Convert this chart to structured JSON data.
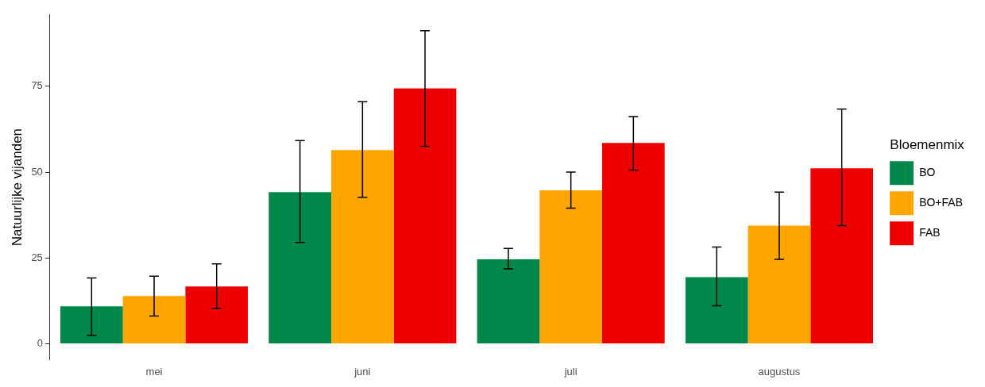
{
  "chart_data": {
    "type": "bar",
    "ylabel": "Natuurlijke vijanden",
    "legend_title": "Bloemenmix",
    "legend": "right",
    "grid": false,
    "categories": [
      "mei",
      "juni",
      "juli",
      "augustus"
    ],
    "series": [
      {
        "name": "BO",
        "color": "#00884a",
        "values": [
          10.9,
          44.2,
          24.6,
          19.4
        ],
        "errors": [
          [
            2.4,
            19.2
          ],
          [
            29.5,
            59.2
          ],
          [
            21.8,
            27.8
          ],
          [
            11.1,
            28.2
          ]
        ]
      },
      {
        "name": "BO+FAB",
        "color": "#ffa500",
        "values": [
          13.9,
          56.4,
          44.7,
          34.4
        ],
        "errors": [
          [
            8.1,
            19.7
          ],
          [
            42.7,
            70.5
          ],
          [
            39.5,
            50
          ],
          [
            24.6,
            44.2
          ]
        ]
      },
      {
        "name": "FAB",
        "color": "#ee0000",
        "values": [
          16.7,
          74.4,
          58.5,
          51.1
        ],
        "errors": [
          [
            10.3,
            23.3
          ],
          [
            57.5,
            91.2
          ],
          [
            50.6,
            66.2
          ],
          [
            34.4,
            68.4
          ]
        ]
      }
    ],
    "ylim": [
      -4.6,
      95.8
    ],
    "yticks": [
      0,
      25,
      50,
      75
    ]
  }
}
